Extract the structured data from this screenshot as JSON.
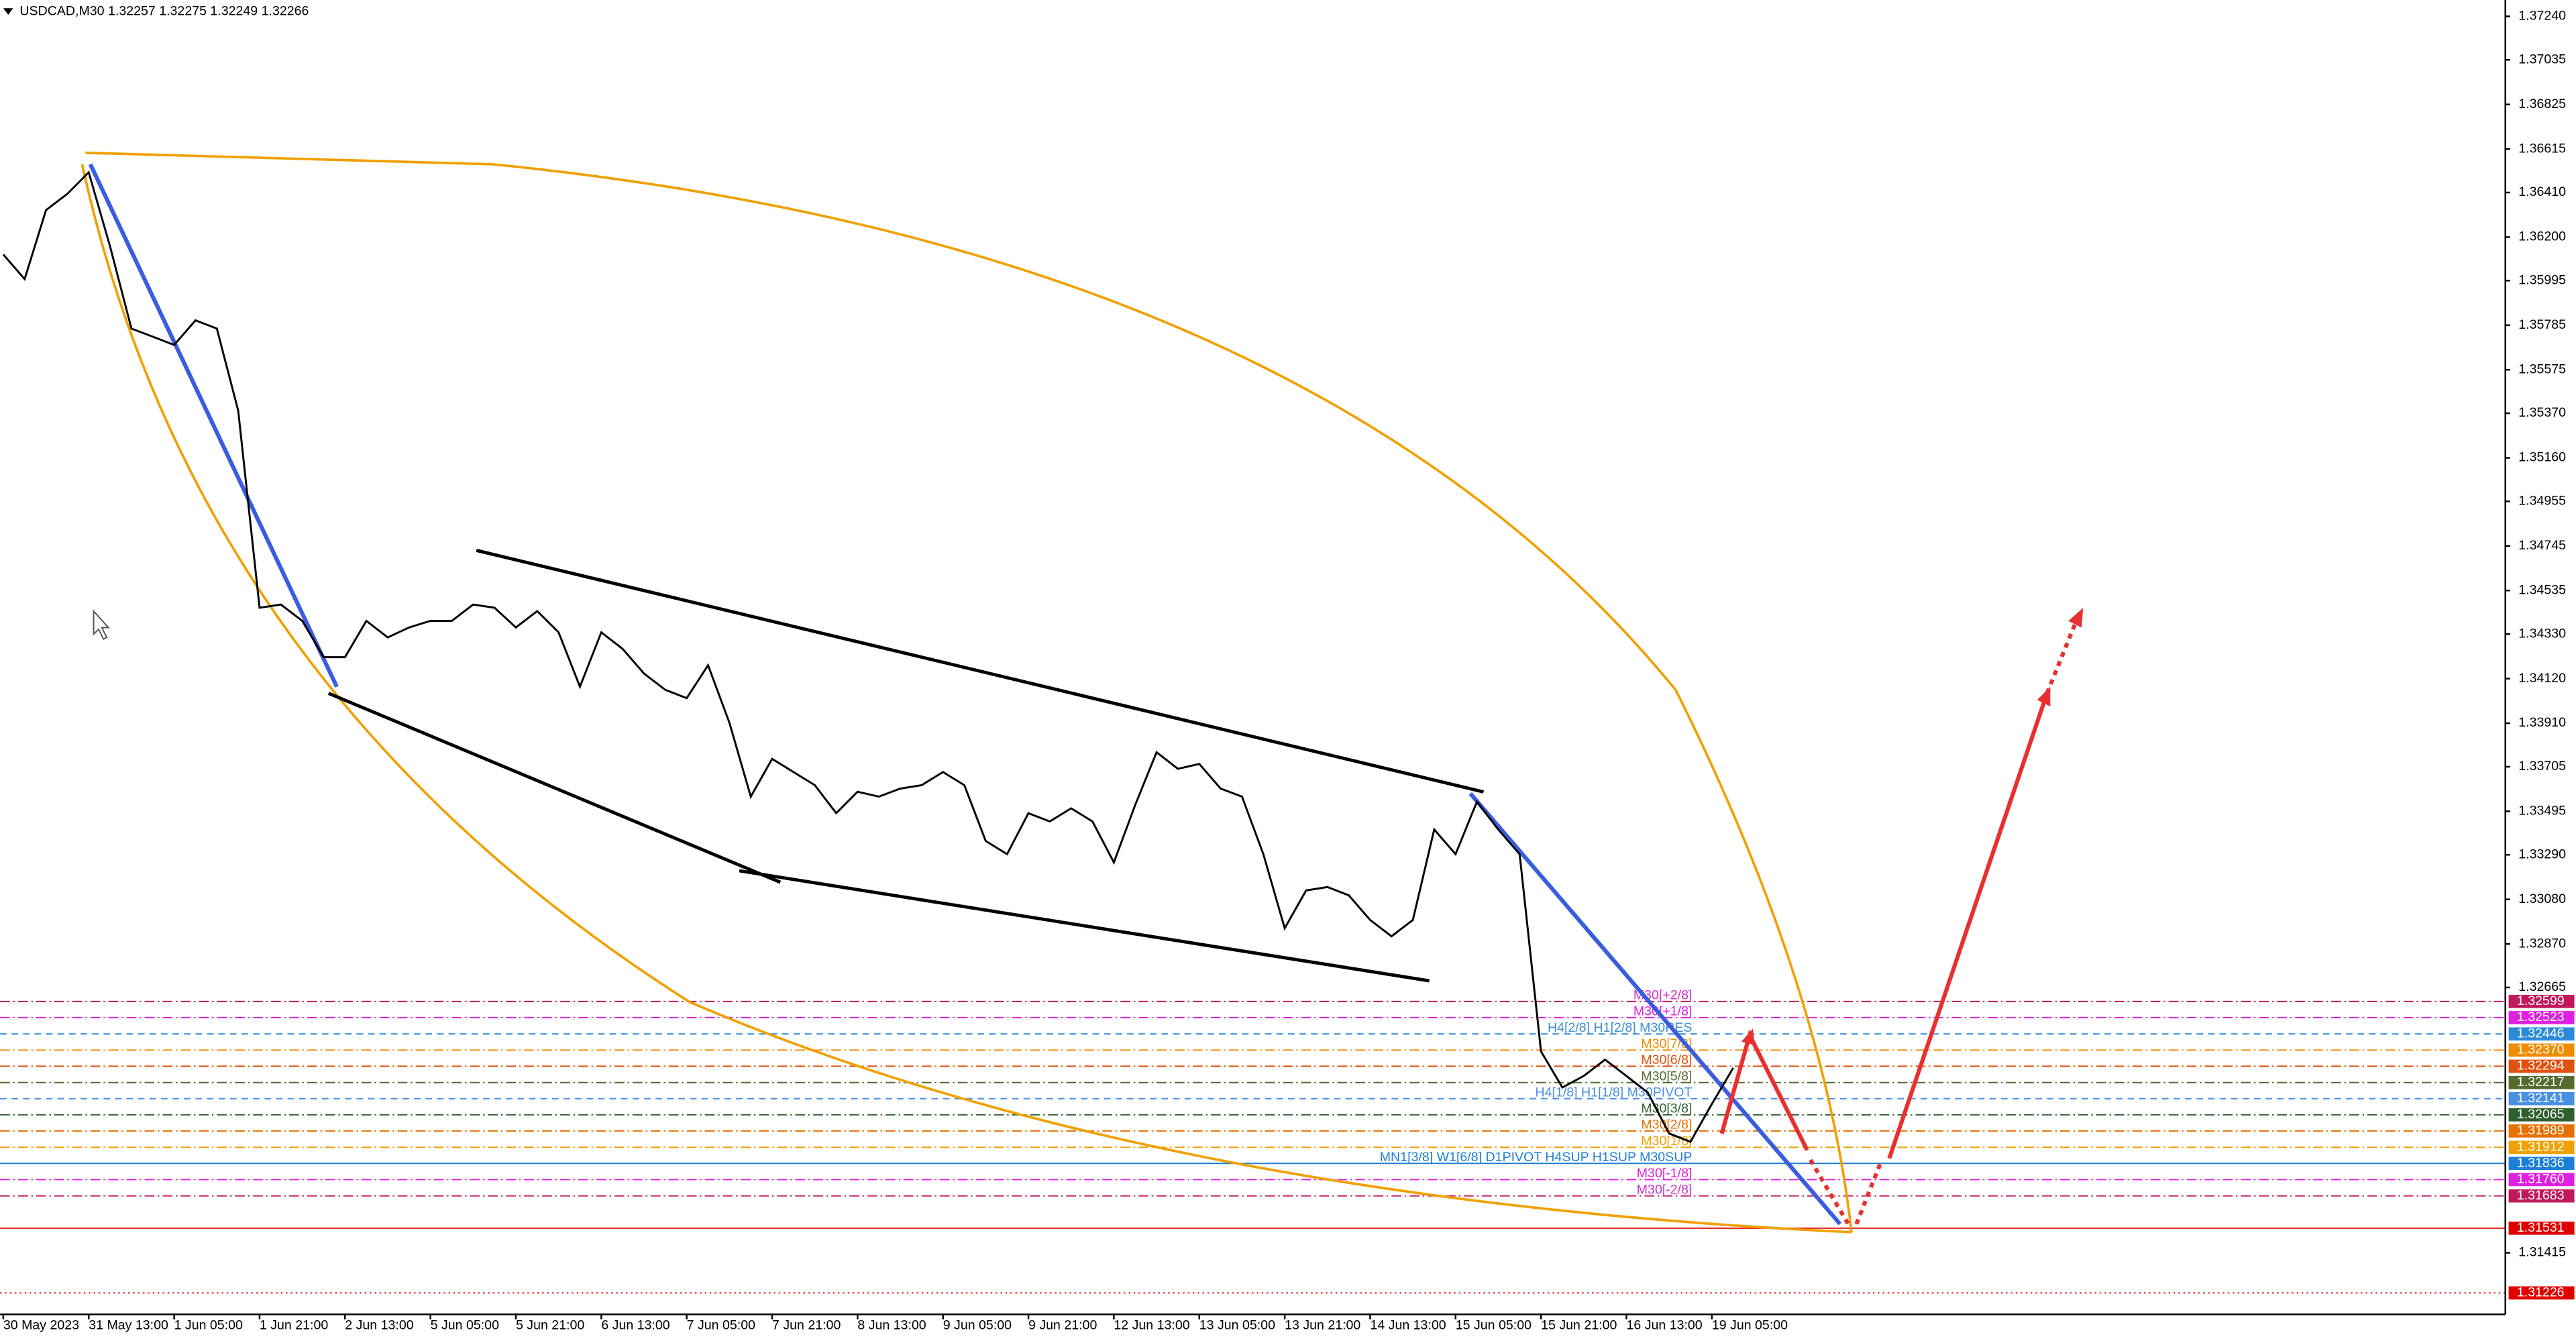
{
  "chart_data": {
    "type": "line",
    "title": "USDCAD,M30  1.32257 1.32275 1.32249 1.32266",
    "categories": [
      "30 May 2023",
      null,
      null,
      null,
      "31 May 13:00",
      null,
      null,
      null,
      "1 Jun 05:00",
      null,
      null,
      null,
      "1 Jun 21:00",
      null,
      null,
      null,
      "2 Jun 13:00",
      null,
      null,
      null,
      "5 Jun 05:00",
      null,
      null,
      null,
      "5 Jun 21:00",
      null,
      null,
      null,
      "6 Jun 13:00",
      null,
      null,
      null,
      "7 Jun 05:00",
      null,
      null,
      null,
      "7 Jun 21:00",
      null,
      null,
      null,
      "8 Jun 13:00",
      null,
      null,
      null,
      "9 Jun 05:00",
      null,
      null,
      null,
      "9 Jun 21:00",
      null,
      null,
      null,
      "12 Jun 13:00",
      null,
      null,
      null,
      "13 Jun 05:00",
      null,
      null,
      null,
      "13 Jun 21:00",
      null,
      null,
      null,
      "14 Jun 13:00",
      null,
      null,
      null,
      "15 Jun 05:00",
      null,
      null,
      null,
      "15 Jun 21:00",
      null,
      null,
      null,
      "16 Jun 13:00",
      null,
      null,
      null,
      "19 Jun 05:00",
      null
    ],
    "series": [
      {
        "name": "USDCAD",
        "color": "#000000",
        "values": [
          1.36118,
          1.36002,
          1.36327,
          1.36404,
          1.36505,
          1.36156,
          1.35769,
          1.35731,
          1.35692,
          1.35808,
          1.35769,
          1.35382,
          1.34454,
          1.34469,
          1.34392,
          1.34221,
          1.34221,
          1.34392,
          1.34314,
          1.34361,
          1.34392,
          1.34392,
          1.34469,
          1.34454,
          1.34361,
          1.34438,
          1.34338,
          1.34082,
          1.34338,
          1.3426,
          1.34144,
          1.34067,
          1.34028,
          1.34183,
          1.33912,
          1.33564,
          1.33742,
          1.3368,
          1.33618,
          1.33486,
          1.33587,
          1.33564,
          1.33602,
          1.33618,
          1.3368,
          1.33618,
          1.33355,
          1.33293,
          1.33486,
          1.33447,
          1.33509,
          1.33447,
          1.33254,
          1.33525,
          1.33773,
          1.33695,
          1.33718,
          1.33602,
          1.33564,
          1.33293,
          1.32944,
          1.33122,
          1.33138,
          1.33099,
          1.32983,
          1.32906,
          1.32983,
          1.33409,
          1.33293,
          1.3354,
          1.33409,
          1.33293,
          1.32364,
          1.32194,
          1.32248,
          1.32325,
          1.32248,
          1.3217,
          1.31977,
          1.31938,
          1.32116,
          1.32286
        ]
      }
    ],
    "ylim": [
      1.31125,
      1.37317
    ],
    "yticks": [
      {
        "value": 1.3724,
        "label": "1.37240"
      },
      {
        "value": 1.37035,
        "label": "1.37035"
      },
      {
        "value": 1.36825,
        "label": "1.36825"
      },
      {
        "value": 1.36615,
        "label": "1.36615"
      },
      {
        "value": 1.3641,
        "label": "1.36410"
      },
      {
        "value": 1.362,
        "label": "1.36200"
      },
      {
        "value": 1.35995,
        "label": "1.35995"
      },
      {
        "value": 1.35785,
        "label": "1.35785"
      },
      {
        "value": 1.35575,
        "label": "1.35575"
      },
      {
        "value": 1.3537,
        "label": "1.35370"
      },
      {
        "value": 1.3516,
        "label": "1.35160"
      },
      {
        "value": 1.34955,
        "label": "1.34955"
      },
      {
        "value": 1.34745,
        "label": "1.34745"
      },
      {
        "value": 1.34535,
        "label": "1.34535"
      },
      {
        "value": 1.3433,
        "label": "1.34330"
      },
      {
        "value": 1.3412,
        "label": "1.34120"
      },
      {
        "value": 1.3391,
        "label": "1.33910"
      },
      {
        "value": 1.33705,
        "label": "1.33705"
      },
      {
        "value": 1.33495,
        "label": "1.33495"
      },
      {
        "value": 1.3329,
        "label": "1.33290"
      },
      {
        "value": 1.3308,
        "label": "1.33080"
      },
      {
        "value": 1.3287,
        "label": "1.32870"
      },
      {
        "value": 1.32665,
        "label": "1.32665"
      },
      {
        "value": 1.31415,
        "label": "1.31415"
      }
    ],
    "grid": false,
    "levels": [
      {
        "value": 1.32599,
        "label": "1.32599",
        "color": "#c0185a",
        "text": "M30[+2/8]",
        "text_color": "#cc33cc",
        "style": "dashdot"
      },
      {
        "value": 1.32523,
        "label": "1.32523",
        "color": "#e020e0",
        "text": "M30[+1/8]",
        "text_color": "#e020e0",
        "style": "dashdot"
      },
      {
        "value": 1.32446,
        "label": "1.32446",
        "color": "#2a8ad8",
        "text": "H4[2/8] H1[2/8] M30RES",
        "text_color": "#3a8fd0",
        "style": "dash"
      },
      {
        "value": 1.3237,
        "label": "1.32370",
        "color": "#f08c00",
        "text": "M30[7/8]",
        "text_color": "#f08c00",
        "style": "dashdot"
      },
      {
        "value": 1.32294,
        "label": "1.32294",
        "color": "#e05010",
        "text": "M30[6/8]",
        "text_color": "#e05010",
        "style": "dashdot"
      },
      {
        "value": 1.32217,
        "label": "1.32217",
        "color": "#556b2f",
        "text": "M30[5/8]",
        "text_color": "#556b2f",
        "style": "dashdot"
      },
      {
        "value": 1.32141,
        "label": "1.32141",
        "color": "#4a90e2",
        "text": "H4[1/8] H1[1/8] M30PIVOT",
        "text_color": "#4a90e2",
        "style": "dash"
      },
      {
        "value": 1.32065,
        "label": "1.32065",
        "color": "#2f5f2f",
        "text": "M30[3/8]",
        "text_color": "#2f5f2f",
        "style": "dashdot"
      },
      {
        "value": 1.31989,
        "label": "1.31989",
        "color": "#e87000",
        "text": "M30[2/8]",
        "text_color": "#e87000",
        "style": "dashdot"
      },
      {
        "value": 1.31912,
        "label": "1.31912",
        "color": "#f0a000",
        "text": "M30[1/8]",
        "text_color": "#f0a000",
        "style": "dashdot"
      },
      {
        "value": 1.31836,
        "label": "1.31836",
        "color": "#1e7fd8",
        "text": "MN1[3/8] W1[6/8] D1PIVOT H4SUP H1SUP M30SUP",
        "text_color": "#1e7fd8",
        "style": "solid"
      },
      {
        "value": 1.3176,
        "label": "1.31760",
        "color": "#e020e0",
        "text": "M30[-1/8]",
        "text_color": "#e020e0",
        "style": "dashdot"
      },
      {
        "value": 1.31683,
        "label": "1.31683",
        "color": "#c0185a",
        "text": "M30[-2/8]",
        "text_color": "#cc33cc",
        "style": "dashdot"
      },
      {
        "value": 1.31531,
        "label": "1.31531",
        "color": "#e00000",
        "style": "solid"
      },
      {
        "value": 1.31226,
        "label": "1.31226",
        "color": "#e00000",
        "style": "dot"
      }
    ]
  }
}
